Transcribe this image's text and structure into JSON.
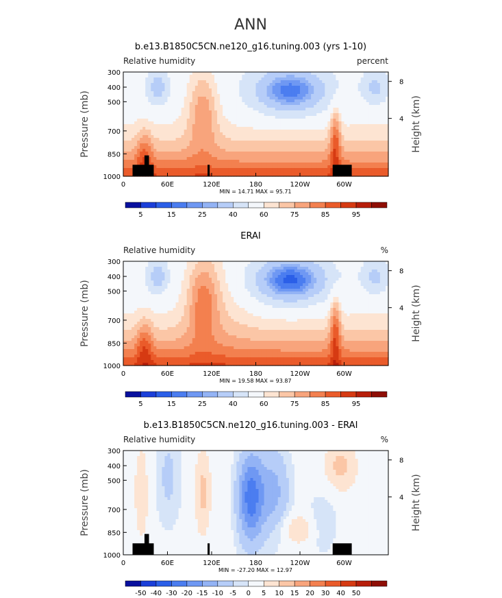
{
  "page_title": "ANN",
  "chart_data": [
    {
      "type": "heatmap",
      "title": "b.e13.B1850C5CN.ne120_g16.tuning.003 (yrs 1-10)",
      "subtitle_left": "Relative humidity",
      "subtitle_right": "percent",
      "ylabel": "Pressure (mb)",
      "ylabel_right": "Height (km)",
      "x_ticks": [
        "0",
        "60E",
        "120E",
        "180",
        "120W",
        "60W"
      ],
      "y_ticks": [
        "300",
        "400",
        "500",
        "700",
        "850",
        "1000"
      ],
      "height_ticks": [
        "8",
        "4"
      ],
      "stats": "MIN =   14.71   MAX =   95.71",
      "colorbar_ticks": [
        "5",
        "15",
        "25",
        "40",
        "60",
        "75",
        "85",
        "95"
      ],
      "colorbar_colors": [
        "#08109e",
        "#1b3fd9",
        "#2b5fe8",
        "#4b7df0",
        "#6f98f3",
        "#93b3f5",
        "#b6cdf8",
        "#d6e4f8",
        "#f4f7fb",
        "#fde4d2",
        "#fbc6a6",
        "#f8a47c",
        "#f3804f",
        "#ea5b2a",
        "#d63a12",
        "#b71e0a",
        "#8f0e05"
      ],
      "min": 14.71,
      "max": 95.71
    },
    {
      "type": "heatmap",
      "title": "ERAI",
      "subtitle_left": "Relative humidity",
      "subtitle_right": "%",
      "ylabel": "Pressure (mb)",
      "ylabel_right": "Height (km)",
      "x_ticks": [
        "0",
        "60E",
        "120E",
        "180",
        "120W",
        "60W"
      ],
      "y_ticks": [
        "300",
        "400",
        "500",
        "700",
        "850",
        "1000"
      ],
      "height_ticks": [
        "8",
        "4"
      ],
      "stats": "MIN =   19.58   MAX =   93.87",
      "colorbar_ticks": [
        "5",
        "15",
        "25",
        "40",
        "60",
        "75",
        "85",
        "95"
      ],
      "colorbar_colors": [
        "#08109e",
        "#1b3fd9",
        "#2b5fe8",
        "#4b7df0",
        "#6f98f3",
        "#93b3f5",
        "#b6cdf8",
        "#d6e4f8",
        "#f4f7fb",
        "#fde4d2",
        "#fbc6a6",
        "#f8a47c",
        "#f3804f",
        "#ea5b2a",
        "#d63a12",
        "#b71e0a",
        "#8f0e05"
      ],
      "min": 19.58,
      "max": 93.87
    },
    {
      "type": "heatmap",
      "title": "b.e13.B1850C5CN.ne120_g16.tuning.003 - ERAI",
      "subtitle_left": "Relative humidity",
      "subtitle_right": "%",
      "ylabel": "Pressure (mb)",
      "ylabel_right": "Height (km)",
      "x_ticks": [
        "0",
        "60E",
        "120E",
        "180",
        "120W",
        "60W"
      ],
      "y_ticks": [
        "300",
        "400",
        "500",
        "700",
        "850",
        "1000"
      ],
      "height_ticks": [
        "8",
        "4"
      ],
      "stats": "MIN = -27.20   MAX =   12.97",
      "colorbar_ticks": [
        "-50",
        "-40",
        "-30",
        "-20",
        "-15",
        "-10",
        "-5",
        "0",
        "5",
        "10",
        "15",
        "20",
        "30",
        "40",
        "50"
      ],
      "colorbar_colors": [
        "#08109e",
        "#1b3fd9",
        "#2b5fe8",
        "#4b7df0",
        "#6f98f3",
        "#93b3f5",
        "#b6cdf8",
        "#d6e4f8",
        "#f4f7fb",
        "#fde4d2",
        "#fbc6a6",
        "#f8a47c",
        "#f3804f",
        "#ea5b2a",
        "#d63a12",
        "#b71e0a",
        "#8f0e05"
      ],
      "min": -27.2,
      "max": 12.97
    }
  ]
}
